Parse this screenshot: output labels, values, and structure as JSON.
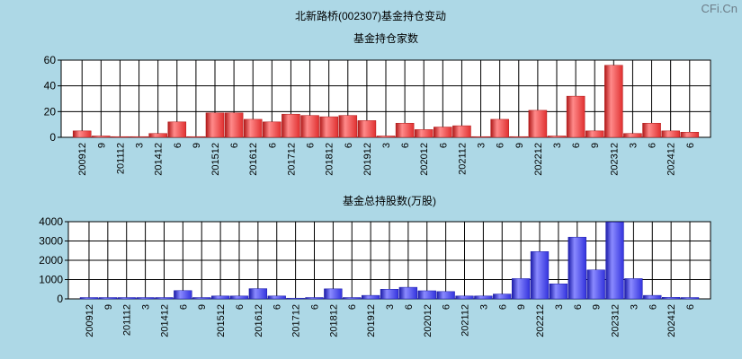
{
  "page_title": "北新路桥(002307)基金持仓变动",
  "watermark": "CFi.Cn",
  "chart_data": [
    {
      "type": "bar",
      "title": "基金持仓家数",
      "ylim": [
        0,
        60
      ],
      "yticks": [
        0,
        20,
        40,
        60
      ],
      "grid": true,
      "bar_color": "#e03030",
      "categories": [
        "200912",
        "9",
        "201112",
        "3",
        "201412",
        "6",
        "9",
        "201512",
        "6",
        "201612",
        "6",
        "201712",
        "6",
        "201812",
        "6",
        "201912",
        "3",
        "6",
        "202012",
        "6",
        "202112",
        "3",
        "6",
        "9",
        "202212",
        "3",
        "6",
        "9",
        "202312",
        "3",
        "6",
        "202412",
        "6"
      ],
      "tick_labels": [
        "200912",
        "9",
        "201112",
        "3",
        "201412",
        "6",
        "9",
        "201512",
        "6",
        "201612",
        "6",
        "201712",
        "6",
        "201812",
        "6",
        "201912",
        "3",
        "6",
        "202012",
        "6",
        "202112",
        "3",
        "6",
        "9",
        "202212",
        "3",
        "6",
        "9",
        "202312",
        "3",
        "6",
        "202412",
        "6"
      ],
      "values": [
        5,
        1,
        0,
        0,
        3,
        12,
        0,
        19,
        19,
        14,
        12,
        18,
        17,
        16,
        17,
        13,
        1,
        11,
        6,
        8,
        9,
        0,
        14,
        0,
        21,
        1,
        32,
        5,
        56,
        3,
        11,
        5,
        4
      ]
    },
    {
      "type": "bar",
      "title": "基金总持股数(万股)",
      "ylim": [
        0,
        4000
      ],
      "yticks": [
        0,
        1000,
        2000,
        3000,
        4000
      ],
      "grid": true,
      "bar_color": "#3333dd",
      "categories": [
        "200912",
        "9",
        "201112",
        "3",
        "201412",
        "6",
        "9",
        "201512",
        "6",
        "201612",
        "6",
        "201712",
        "6",
        "201812",
        "6",
        "201912",
        "3",
        "6",
        "202012",
        "6",
        "202112",
        "3",
        "6",
        "9",
        "202212",
        "3",
        "6",
        "9",
        "202312",
        "3",
        "6",
        "202412",
        "6"
      ],
      "tick_labels": [
        "200912",
        "9",
        "201112",
        "3",
        "201412",
        "6",
        "9",
        "201512",
        "6",
        "201612",
        "6",
        "201712",
        "6",
        "201812",
        "6",
        "201912",
        "3",
        "6",
        "202012",
        "6",
        "202112",
        "3",
        "6",
        "9",
        "202212",
        "3",
        "6",
        "9",
        "202312",
        "3",
        "6",
        "202412",
        "6"
      ],
      "values": [
        30,
        10,
        10,
        10,
        20,
        430,
        60,
        150,
        150,
        530,
        150,
        0,
        60,
        520,
        60,
        180,
        500,
        600,
        420,
        380,
        150,
        150,
        250,
        1050,
        2450,
        780,
        3200,
        1500,
        3980,
        1050,
        180,
        80,
        20
      ]
    }
  ]
}
